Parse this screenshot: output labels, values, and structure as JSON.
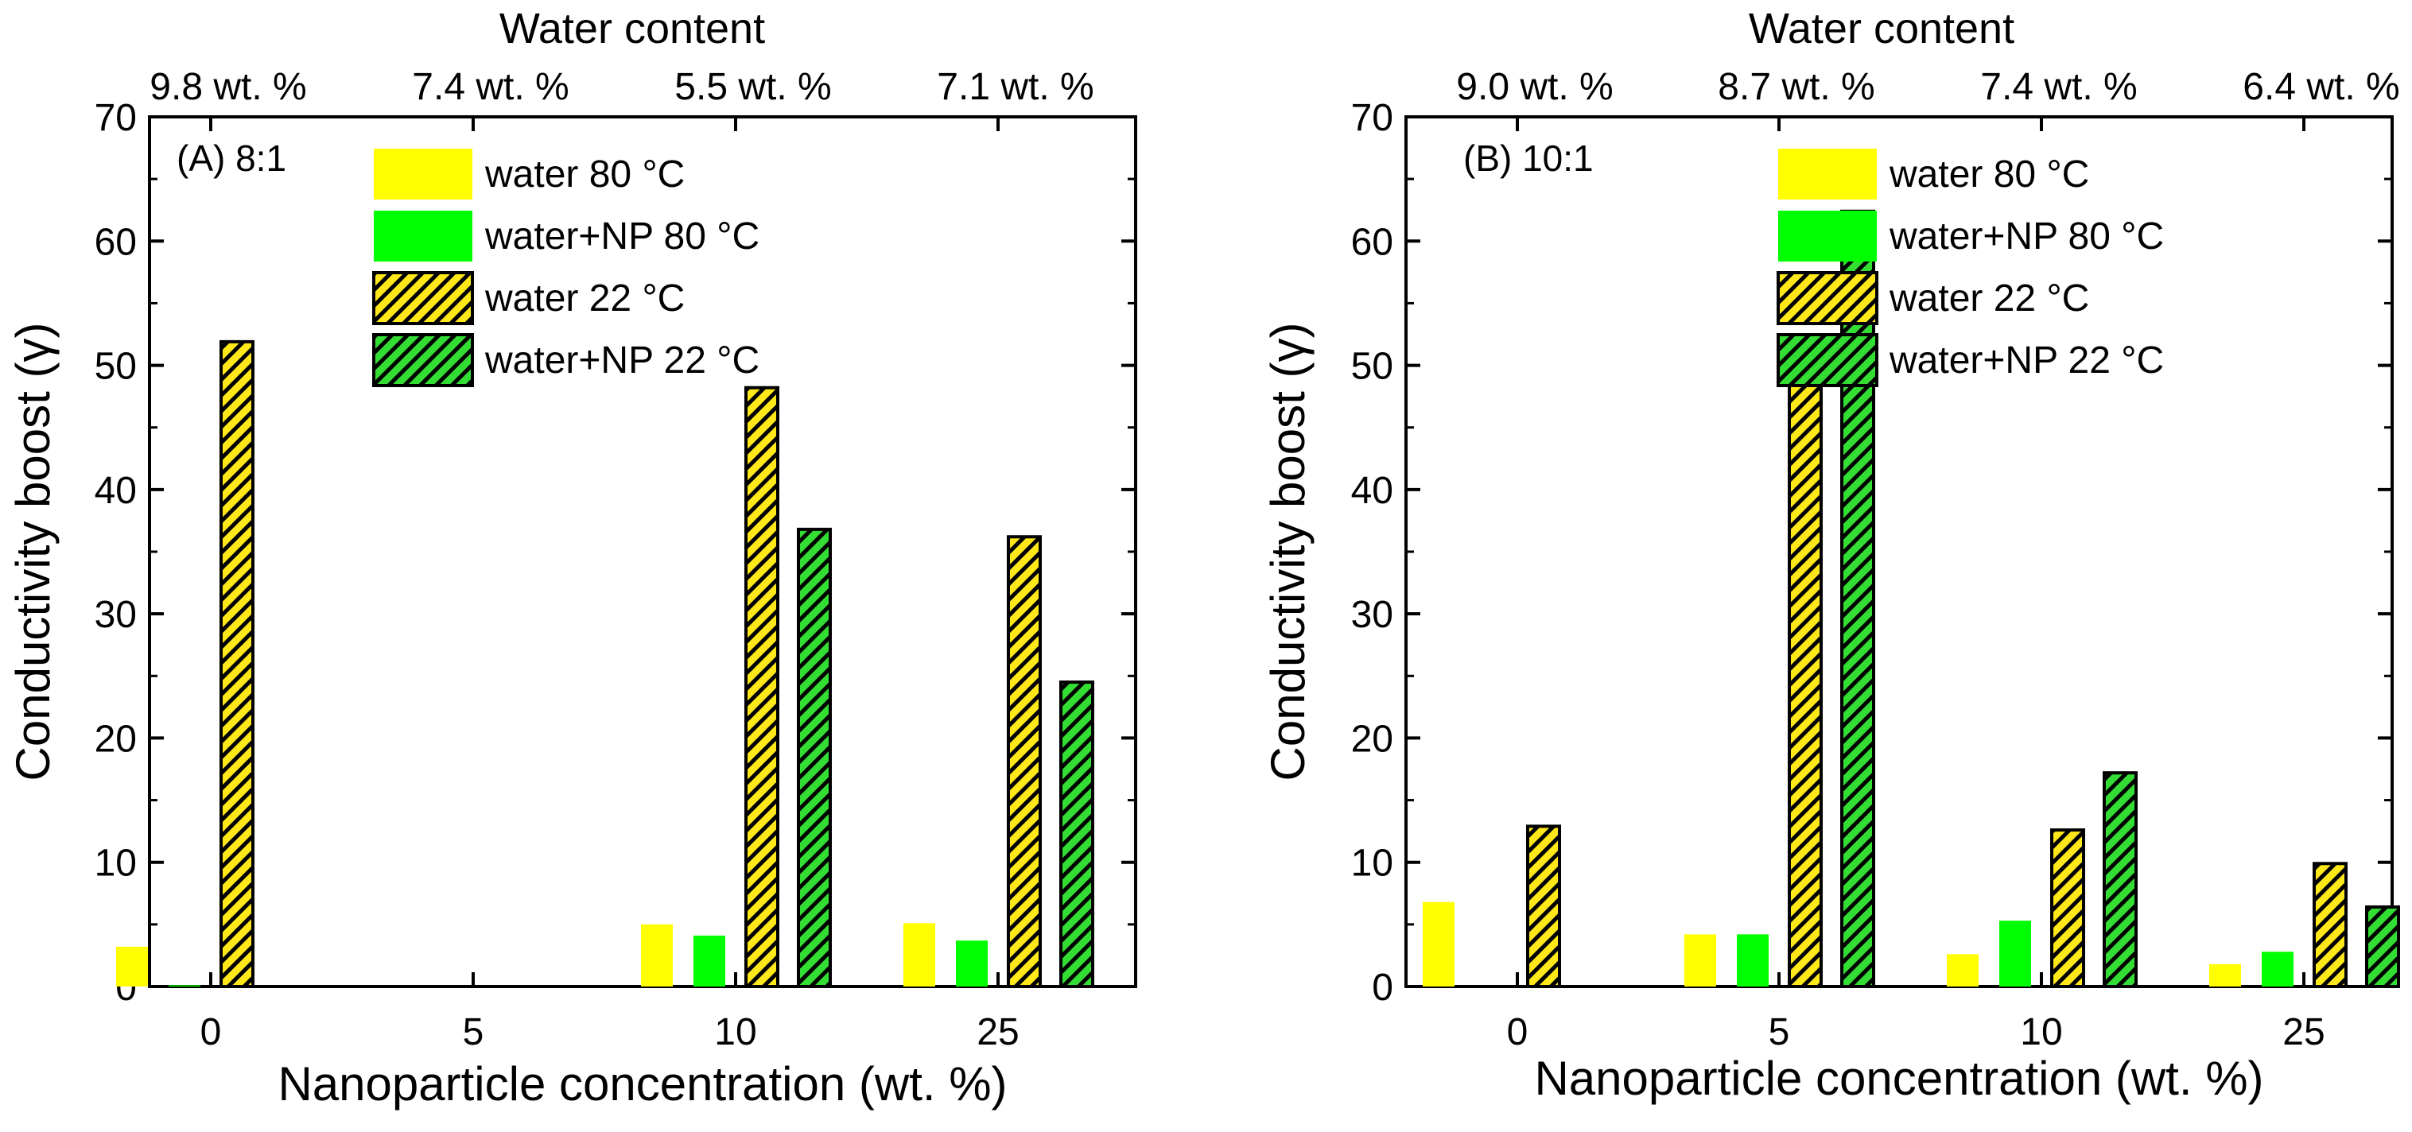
{
  "colors": {
    "water_80": "#FFFF00",
    "water_np_80": "#00FF00",
    "water_22": "#FFE81A",
    "water_np_22": "#33DD33",
    "axis": "#000000",
    "background": "#FFFFFF"
  },
  "chart_data": [
    {
      "type": "bar",
      "panel_label": "(A) 8:1",
      "categories": [
        "0",
        "5",
        "10",
        "25"
      ],
      "xlabel": "Nanoparticle concentration (wt. %)",
      "ylabel": "Conductivity boost (γ)",
      "top_axis_title": "Water content",
      "top_tick_labels": [
        "9.8 wt. %",
        "7.4 wt. %",
        "5.5 wt. %",
        "7.1 wt. %"
      ],
      "ylim": [
        0,
        70
      ],
      "yticks": [
        "0",
        "10",
        "20",
        "30",
        "40",
        "50",
        "60",
        "70"
      ],
      "grid": false,
      "legend_position": "top-right",
      "series": [
        {
          "name": "water 80 °C",
          "values": [
            3.2,
            0,
            5.0,
            5.1
          ]
        },
        {
          "name": "water+NP 80 °C",
          "values": [
            0.1,
            0,
            4.1,
            3.7
          ]
        },
        {
          "name": "water 22 °C",
          "values": [
            51.9,
            0,
            48.2,
            36.2
          ]
        },
        {
          "name": "water+NP 22 °C",
          "values": [
            0,
            0,
            36.8,
            24.5
          ]
        }
      ]
    },
    {
      "type": "bar",
      "panel_label": "(B) 10:1",
      "categories": [
        "0",
        "5",
        "10",
        "25"
      ],
      "xlabel": "Nanoparticle concentration (wt. %)",
      "ylabel": "Conductivity boost (γ)",
      "top_axis_title": "Water content",
      "top_tick_labels": [
        "9.0 wt. %",
        "8.7 wt. %",
        "7.4 wt. %",
        "6.4 wt. %"
      ],
      "ylim": [
        0,
        70
      ],
      "yticks": [
        "0",
        "10",
        "20",
        "30",
        "40",
        "50",
        "60",
        "70"
      ],
      "grid": false,
      "legend_position": "top-right",
      "series": [
        {
          "name": "water 80 °C",
          "values": [
            6.8,
            4.2,
            2.6,
            1.8
          ]
        },
        {
          "name": "water+NP 80 °C",
          "values": [
            0,
            4.2,
            5.3,
            2.8
          ]
        },
        {
          "name": "water 22 °C",
          "values": [
            12.9,
            48.7,
            12.6,
            9.9
          ]
        },
        {
          "name": "water+NP 22 °C",
          "values": [
            0,
            62.4,
            17.2,
            6.4
          ]
        }
      ]
    }
  ]
}
